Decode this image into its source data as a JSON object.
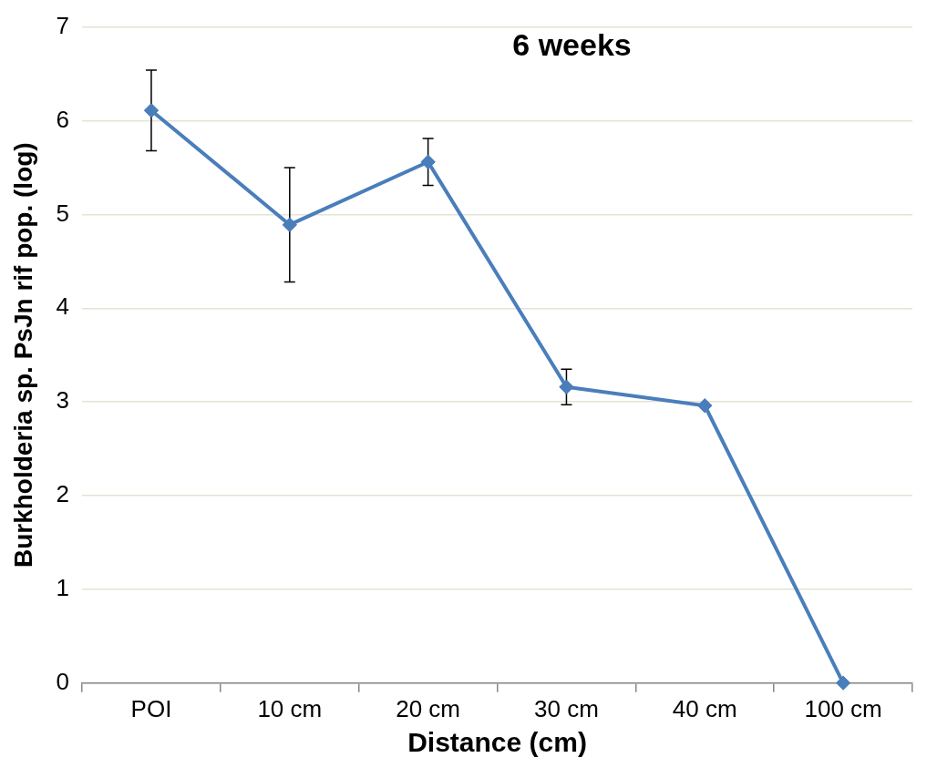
{
  "chart_data": {
    "type": "line",
    "title": "6 weeks",
    "xlabel": "Distance (cm)",
    "ylabel": "Burkholderia sp. PsJn rif pop. (log)",
    "categories": [
      "POI",
      "10 cm",
      "20 cm",
      "30 cm",
      "40 cm",
      "100 cm"
    ],
    "series": [
      {
        "color": "#4a7ebb",
        "values": [
          6.11,
          4.89,
          5.56,
          3.16,
          2.96,
          0
        ],
        "errors": [
          0.43,
          0.61,
          0.25,
          0.19,
          null,
          null
        ]
      }
    ],
    "ylim": [
      0,
      7
    ],
    "yticks": [
      0,
      1,
      2,
      3,
      4,
      5,
      6,
      7
    ],
    "grid": "y",
    "legend": false,
    "marker": "diamond",
    "line_style": "solid"
  }
}
